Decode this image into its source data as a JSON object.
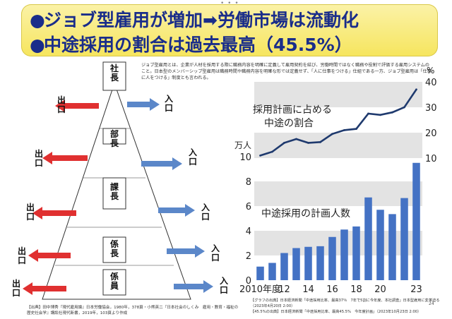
{
  "banner": {
    "line1": "ジョブ型雇用が増加➡労働市場は流動化",
    "line2": "中途採用の割合は過去最高（45.5%）",
    "bullet": "●"
  },
  "pyramid": {
    "levels": [
      "社長",
      "部長",
      "課長",
      "係長",
      "係員"
    ],
    "exit_label": "出口",
    "entry_label": "入口"
  },
  "description": "ジョブ型雇用とは、企業が人材を採用する際に職務内容を明確に定義して雇用契約を結び、労働時間ではなく職務や役割で評価する雇用システムのこと。日本型のメンバーシップ型雇用は職務時間や職務内容を明確な形では定義せず、「人に仕事をつける」仕組である一方、ジョブ型雇用は「仕事に人をつける」制度とも言われる。",
  "source_left": "【出典】田中博秀『現代雇用論』日本労働協会，1980年，378頁・小熊英二『日本社会のしくみ　雇用・教育・福祉の歴史社会学』講談社現代新書，2019年，103頁より作成",
  "source_right": [
    "【グラフの出典】日本経済新聞「中途採用比率、最高37％　7年で5割に今年度、本社調査」日本型雇用に変革迫る（2023年4月20日 2:00）",
    "【45.5%の出典】日本経済新聞「中途採用比率、最高45.5%　今年度計画」（2023年10月23日 2:00）"
  ],
  "page_number": "24",
  "chart_data": {
    "type": "bar",
    "x": [
      "2010",
      "2011",
      "2012",
      "2013",
      "2014",
      "2015",
      "2016",
      "2017",
      "2018",
      "2019",
      "2020",
      "2021",
      "2022",
      "2023"
    ],
    "x_tick_labels": [
      "2010年度",
      "12",
      "14",
      "16",
      "18",
      "20",
      "23"
    ],
    "x_tick_positions": [
      "2010",
      "2012",
      "2014",
      "2016",
      "2018",
      "2020",
      "2023"
    ],
    "series": [
      {
        "name": "中途採用の計画人数",
        "type": "bar",
        "unit": "万人",
        "axis": "left",
        "values": [
          1.1,
          1.4,
          2.2,
          2.6,
          2.7,
          2.75,
          3.5,
          4.1,
          4.35,
          6.7,
          5.7,
          5.35,
          6.65,
          9.5
        ]
      },
      {
        "name": "採用計画に占める中途の割合",
        "type": "line",
        "unit": "%",
        "axis": "right",
        "values": [
          11,
          12.5,
          16,
          17.5,
          16,
          16.3,
          19.5,
          21,
          21.5,
          27.5,
          27,
          28,
          30,
          37
        ]
      }
    ],
    "left_axis": {
      "label": "万人",
      "range": [
        0,
        10
      ],
      "ticks": [
        0,
        2,
        4,
        6,
        8,
        10
      ]
    },
    "right_axis": {
      "label": "%",
      "range": [
        10,
        40
      ],
      "ticks": [
        10,
        20,
        30,
        40
      ]
    },
    "colors": {
      "bar": "#4472c4",
      "line": "#1f3a6e",
      "band": "#e3e3e3"
    }
  }
}
